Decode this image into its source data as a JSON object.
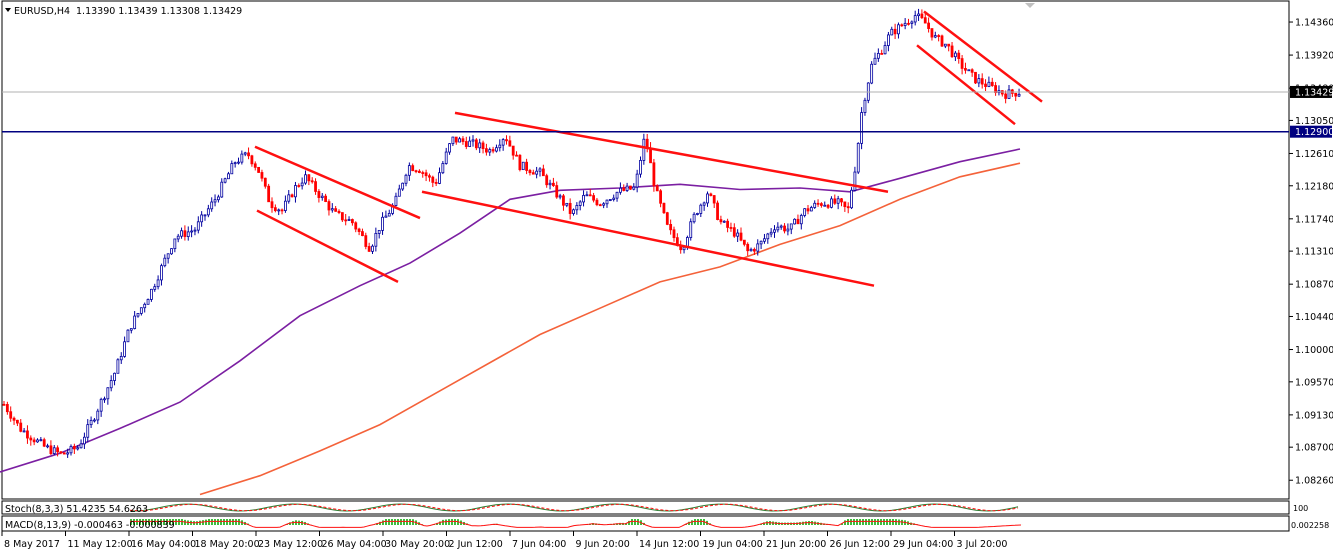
{
  "header": {
    "symbol": "EURUSD,H4",
    "ohlc": "1.13390 1.13439 1.13308 1.13429"
  },
  "indicators": {
    "stoch_label": "Stoch(8,3,3) 51.4235 54.6263",
    "macd_label": "MACD(8,13,9) -0.000463 -0.000839",
    "stoch_axis": "100",
    "macd_axis": "0.002258"
  },
  "colors": {
    "bull_candle": "#0000a0",
    "bear_candle": "#ff0000",
    "sma_short": "#7b1fa2",
    "sma_long": "#f4623a",
    "trendline": "#ff1010",
    "level_line": "#000080",
    "stoch_main": "#2e7d32",
    "stoch_signal": "#ff1010",
    "macd_hist": "#3cbc3c",
    "macd_signal": "#ff1010"
  },
  "chart_data": {
    "type": "candlestick",
    "symbol": "EURUSD",
    "timeframe": "H4",
    "ylim": [
      1.0805,
      1.146
    ],
    "y_ticks": [
      "1.14360",
      "1.13920",
      "1.13480",
      "1.13050",
      "1.12610",
      "1.12180",
      "1.11740",
      "1.11310",
      "1.10870",
      "1.10440",
      "1.10000",
      "1.09570",
      "1.09130",
      "1.08700",
      "1.08260"
    ],
    "x_ticks": [
      "8 May 2017",
      "11 May 12:00",
      "16 May 04:00",
      "18 May 20:00",
      "23 May 12:00",
      "26 May 04:00",
      "30 May 20:00",
      "2 Jun 12:00",
      "7 Jun 04:00",
      "9 Jun 20:00",
      "14 Jun 12:00",
      "19 Jun 04:00",
      "21 Jun 20:00",
      "26 Jun 12:00",
      "29 Jun 04:00",
      "3 Jul 20:00"
    ],
    "current_price": "1.13429",
    "horizontal_level": "1.12900",
    "price_path": [
      [
        0,
        1.0935
      ],
      [
        20,
        1.0895
      ],
      [
        45,
        1.087
      ],
      [
        62,
        1.086
      ],
      [
        78,
        1.087
      ],
      [
        92,
        1.0905
      ],
      [
        115,
        1.097
      ],
      [
        130,
        1.103
      ],
      [
        152,
        1.108
      ],
      [
        175,
        1.115
      ],
      [
        195,
        1.116
      ],
      [
        215,
        1.12
      ],
      [
        235,
        1.125
      ],
      [
        248,
        1.126
      ],
      [
        258,
        1.124
      ],
      [
        270,
        1.1195
      ],
      [
        282,
        1.1185
      ],
      [
        295,
        1.1215
      ],
      [
        305,
        1.123
      ],
      [
        320,
        1.1205
      ],
      [
        335,
        1.118
      ],
      [
        352,
        1.117
      ],
      [
        370,
        1.1135
      ],
      [
        380,
        1.1165
      ],
      [
        395,
        1.1195
      ],
      [
        408,
        1.1245
      ],
      [
        420,
        1.124
      ],
      [
        435,
        1.122
      ],
      [
        452,
        1.128
      ],
      [
        470,
        1.1275
      ],
      [
        490,
        1.1265
      ],
      [
        505,
        1.1285
      ],
      [
        520,
        1.1245
      ],
      [
        540,
        1.1235
      ],
      [
        555,
        1.121
      ],
      [
        572,
        1.118
      ],
      [
        585,
        1.1205
      ],
      [
        600,
        1.1195
      ],
      [
        618,
        1.121
      ],
      [
        635,
        1.1215
      ],
      [
        645,
        1.1285
      ],
      [
        655,
        1.1215
      ],
      [
        668,
        1.116
      ],
      [
        682,
        1.1135
      ],
      [
        695,
        1.118
      ],
      [
        708,
        1.121
      ],
      [
        720,
        1.117
      ],
      [
        735,
        1.1155
      ],
      [
        748,
        1.113
      ],
      [
        760,
        1.114
      ],
      [
        775,
        1.1165
      ],
      [
        790,
        1.116
      ],
      [
        805,
        1.1185
      ],
      [
        820,
        1.1195
      ],
      [
        838,
        1.1195
      ],
      [
        848,
        1.1185
      ],
      [
        856,
        1.125
      ],
      [
        862,
        1.132
      ],
      [
        872,
        1.138
      ],
      [
        882,
        1.14
      ],
      [
        890,
        1.142
      ],
      [
        900,
        1.143
      ],
      [
        915,
        1.1445
      ],
      [
        925,
        1.1435
      ],
      [
        935,
        1.1415
      ],
      [
        947,
        1.1405
      ],
      [
        960,
        1.138
      ],
      [
        975,
        1.136
      ],
      [
        990,
        1.135
      ],
      [
        1005,
        1.134
      ],
      [
        1020,
        1.1343
      ]
    ],
    "moving_averages": [
      {
        "name": "sma_short",
        "points": [
          [
            0,
            1.0837
          ],
          [
            60,
            1.0862
          ],
          [
            120,
            1.0895
          ],
          [
            180,
            1.093
          ],
          [
            240,
            1.0985
          ],
          [
            300,
            1.1045
          ],
          [
            360,
            1.1085
          ],
          [
            410,
            1.1115
          ],
          [
            460,
            1.1155
          ],
          [
            510,
            1.12
          ],
          [
            560,
            1.1212
          ],
          [
            620,
            1.1215
          ],
          [
            680,
            1.122
          ],
          [
            740,
            1.1213
          ],
          [
            800,
            1.1215
          ],
          [
            850,
            1.121
          ],
          [
            900,
            1.1228
          ],
          [
            960,
            1.125
          ],
          [
            1020,
            1.1267
          ]
        ]
      },
      {
        "name": "sma_long",
        "points": [
          [
            200,
            1.0807
          ],
          [
            260,
            1.0832
          ],
          [
            320,
            1.0865
          ],
          [
            380,
            1.09
          ],
          [
            440,
            1.0945
          ],
          [
            500,
            1.099
          ],
          [
            540,
            1.102
          ],
          [
            600,
            1.1055
          ],
          [
            660,
            1.109
          ],
          [
            720,
            1.111
          ],
          [
            780,
            1.114
          ],
          [
            840,
            1.1165
          ],
          [
            900,
            1.12
          ],
          [
            960,
            1.123
          ],
          [
            1020,
            1.1248
          ]
        ]
      }
    ],
    "trendlines": [
      {
        "from": [
          255,
          1.127
        ],
        "to": [
          420,
          1.1175
        ]
      },
      {
        "from": [
          257,
          1.1185
        ],
        "to": [
          398,
          1.109
        ]
      },
      {
        "from": [
          455,
          1.1315
        ],
        "to": [
          888,
          1.121
        ]
      },
      {
        "from": [
          422,
          1.121
        ],
        "to": [
          874,
          1.1085
        ]
      },
      {
        "from": [
          924,
          1.145
        ],
        "to": [
          1042,
          1.133
        ]
      },
      {
        "from": [
          917,
          1.1405
        ],
        "to": [
          1015,
          1.13
        ]
      }
    ]
  }
}
